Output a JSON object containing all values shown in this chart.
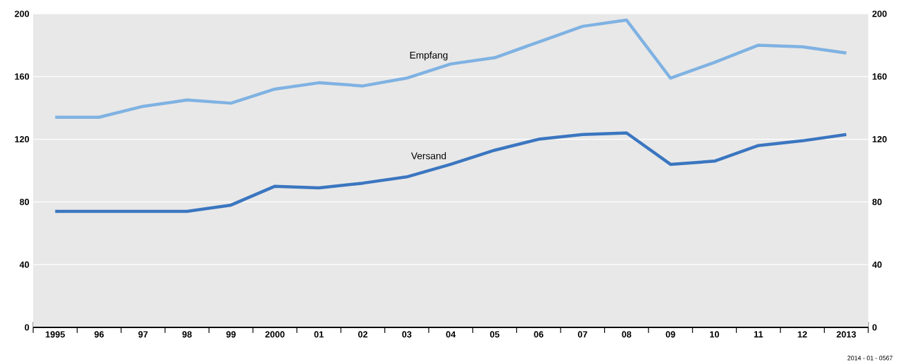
{
  "chart_data": {
    "type": "line",
    "categories": [
      "1995",
      "96",
      "97",
      "98",
      "99",
      "2000",
      "01",
      "02",
      "03",
      "04",
      "05",
      "06",
      "07",
      "08",
      "09",
      "10",
      "11",
      "12",
      "2013"
    ],
    "series": [
      {
        "name": "Empfang",
        "color": "#7fb2e2",
        "values": [
          134,
          134,
          141,
          145,
          143,
          152,
          156,
          154,
          159,
          168,
          172,
          182,
          192,
          196,
          159,
          169,
          180,
          179,
          175
        ]
      },
      {
        "name": "Versand",
        "color": "#3b76c0",
        "values": [
          74,
          74,
          74,
          74,
          78,
          90,
          89,
          92,
          96,
          104,
          113,
          120,
          123,
          124,
          104,
          106,
          116,
          119,
          123
        ]
      }
    ],
    "ylim": [
      0,
      200
    ],
    "yticks": [
      0,
      40,
      80,
      120,
      160,
      200
    ],
    "y2lim": [
      0,
      200
    ],
    "y2ticks": [
      0,
      40,
      80,
      120,
      160,
      200
    ],
    "grid": "y",
    "legend": false,
    "marker": "none",
    "line_style": "solid",
    "annotations": [
      "2014 - 01 - 0567"
    ]
  }
}
